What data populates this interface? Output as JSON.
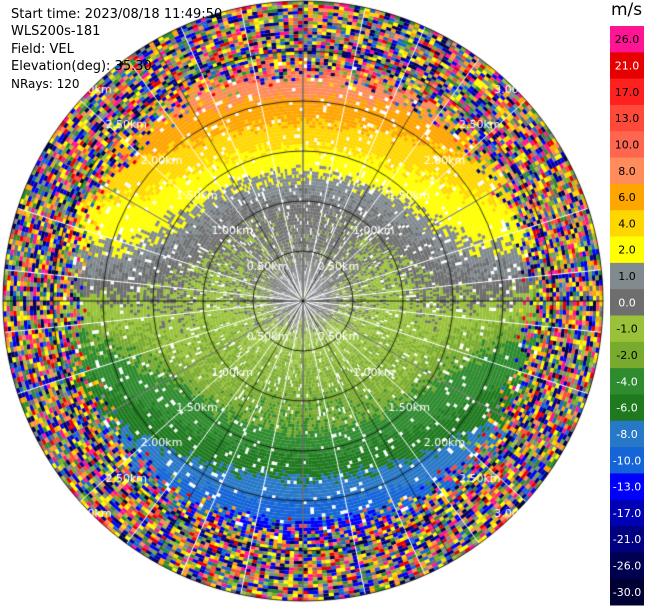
{
  "header": {
    "start_time": "Start time: 2023/08/18 11:49:50",
    "instrument": "WLS200s-181",
    "field": "Field: VEL",
    "elevation": "Elevation(deg): 35.30",
    "nrays": "NRays: 120"
  },
  "colorbar": {
    "unit": "m/s",
    "levels": [
      {
        "label": "26.0",
        "color": "#ff1493"
      },
      {
        "label": "21.0",
        "color": "#e60000"
      },
      {
        "label": "17.0",
        "color": "#ff2020"
      },
      {
        "label": "13.0",
        "color": "#ff4a3a"
      },
      {
        "label": "10.0",
        "color": "#ff6650"
      },
      {
        "label": "8.0",
        "color": "#ff8c5a"
      },
      {
        "label": "6.0",
        "color": "#ffa500"
      },
      {
        "label": "4.0",
        "color": "#ffd700"
      },
      {
        "label": "2.0",
        "color": "#ffff00"
      },
      {
        "label": "1.0",
        "color": "#808a8f"
      },
      {
        "label": "0.0",
        "color": "#6e6e6e"
      },
      {
        "label": "-1.0",
        "color": "#99c23a"
      },
      {
        "label": "-2.0",
        "color": "#78aa2e"
      },
      {
        "label": "-4.0",
        "color": "#2e8b2e"
      },
      {
        "label": "-6.0",
        "color": "#1f7a1f"
      },
      {
        "label": "-8.0",
        "color": "#2878c8"
      },
      {
        "label": "-10.0",
        "color": "#1565d8"
      },
      {
        "label": "-13.0",
        "color": "#0000ff"
      },
      {
        "label": "-17.0",
        "color": "#0000b4"
      },
      {
        "label": "-21.0",
        "color": "#000080"
      },
      {
        "label": "-26.0",
        "color": "#000050"
      },
      {
        "label": "-30.0",
        "color": "#000033"
      }
    ]
  },
  "chart_data": {
    "type": "heatmap",
    "projection": "polar (PPI)",
    "field": "VEL",
    "units": "m/s",
    "elevation_deg": 35.3,
    "nrays": 120,
    "range_rings_km": [
      0.5,
      1.0,
      1.5,
      2.0,
      2.5,
      3.0
    ],
    "ring_labels": [
      "0.50km",
      "1.00km",
      "1.50km",
      "2.00km",
      "2.50km",
      "3.00km"
    ],
    "max_range_km": 3.0,
    "radial_profile": [
      {
        "range_km": 0.0,
        "north_ms": 2.0,
        "south_ms": 1.0
      },
      {
        "range_km": 0.4,
        "north_ms": 0.5,
        "south_ms": -0.5
      },
      {
        "range_km": 0.9,
        "north_ms": 0.5,
        "south_ms": -1.5
      },
      {
        "range_km": 1.3,
        "north_ms": 2.0,
        "south_ms": -2.0
      },
      {
        "range_km": 1.6,
        "north_ms": 4.5,
        "south_ms": -4.5
      },
      {
        "range_km": 1.9,
        "north_ms": 7.0,
        "south_ms": -7.0
      },
      {
        "range_km": 2.15,
        "north_ms": 9.0,
        "south_ms": -9.5
      },
      {
        "range_km": 2.4,
        "north_ms": 11.0,
        "south_ms": -12.0
      }
    ],
    "noise_beyond_km": 2.3,
    "sectors_deg": 12
  }
}
